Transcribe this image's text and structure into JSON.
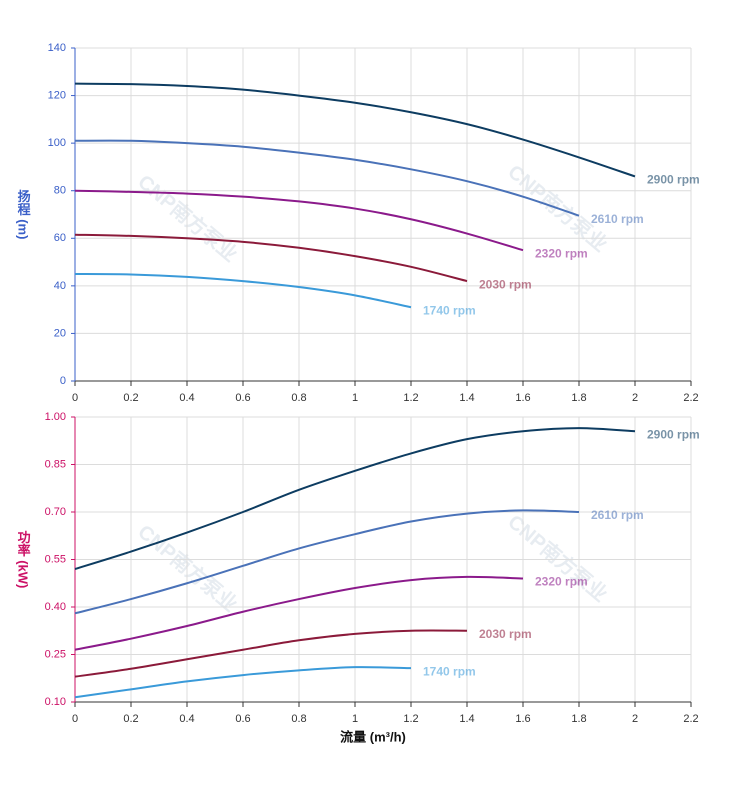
{
  "watermark": "CNP南方泵业",
  "chart_data": [
    {
      "type": "line",
      "y_label": "扬程 (m)",
      "axis_color": "#3a5fc8",
      "grid": true,
      "x": [
        0,
        0.2,
        0.4,
        0.6,
        0.8,
        1,
        1.2,
        1.4,
        1.6,
        1.8,
        2
      ],
      "xlim": [
        0,
        2.2
      ],
      "xticks": [
        0,
        0.2,
        0.4,
        0.6,
        0.8,
        1,
        1.2,
        1.4,
        1.6,
        1.8,
        2,
        2.2
      ],
      "ylim": [
        0,
        140
      ],
      "yticks": [
        0,
        20,
        40,
        60,
        80,
        100,
        120,
        140
      ],
      "series": [
        {
          "name": "2900 rpm",
          "color": "#0d3c61",
          "values": [
            125,
            124.8,
            124,
            122.5,
            120,
            117,
            113,
            108,
            101.5,
            94,
            86
          ]
        },
        {
          "name": "2610 rpm",
          "color": "#4a72b8",
          "values": [
            101,
            101,
            100,
            98.5,
            96,
            93,
            89,
            84,
            77.5,
            69.5,
            null
          ]
        },
        {
          "name": "2320 rpm",
          "color": "#8b1a8b",
          "values": [
            80,
            79.5,
            78.8,
            77.5,
            75.5,
            72.5,
            68,
            62,
            55,
            null,
            null
          ]
        },
        {
          "name": "2030 rpm",
          "color": "#8b1a3a",
          "values": [
            61.5,
            61,
            60,
            58.5,
            56,
            52.5,
            48,
            42,
            null,
            null,
            null
          ]
        },
        {
          "name": "1740 rpm",
          "color": "#3a9ad9",
          "values": [
            45,
            44.8,
            43.8,
            42,
            39.5,
            36,
            31,
            null,
            null,
            null,
            null
          ]
        }
      ]
    },
    {
      "type": "line",
      "x_label": "流量 (m³/h)",
      "y_label": "功率 (kW)",
      "axis_color": "#cc1166",
      "grid": true,
      "x": [
        0,
        0.2,
        0.4,
        0.6,
        0.8,
        1,
        1.2,
        1.4,
        1.6,
        1.8,
        2
      ],
      "xlim": [
        0,
        2.2
      ],
      "xticks": [
        0,
        0.2,
        0.4,
        0.6,
        0.8,
        1,
        1.2,
        1.4,
        1.6,
        1.8,
        2,
        2.2
      ],
      "ylim": [
        0.1,
        1
      ],
      "yticks": [
        {
          "value": 0.1,
          "label": "0.10"
        },
        0.25,
        {
          "value": 0.4,
          "label": "0.40"
        },
        0.55,
        {
          "value": 0.7,
          "label": "0.70"
        },
        0.85,
        {
          "value": 1,
          "label": "1.00"
        }
      ],
      "series": [
        {
          "name": "2900 rpm",
          "color": "#0d3c61",
          "values": [
            0.52,
            0.575,
            0.635,
            0.7,
            0.77,
            0.83,
            0.885,
            0.93,
            0.955,
            0.965,
            0.955
          ]
        },
        {
          "name": "2610 rpm",
          "color": "#4a72b8",
          "values": [
            0.38,
            0.425,
            0.475,
            0.53,
            0.585,
            0.63,
            0.67,
            0.695,
            0.705,
            0.7,
            null
          ]
        },
        {
          "name": "2320 rpm",
          "color": "#8b1a8b",
          "values": [
            0.265,
            0.3,
            0.34,
            0.385,
            0.425,
            0.46,
            0.485,
            0.495,
            0.49,
            null,
            null
          ]
        },
        {
          "name": "2030 rpm",
          "color": "#8b1a3a",
          "values": [
            0.18,
            0.205,
            0.235,
            0.265,
            0.295,
            0.315,
            0.325,
            0.325,
            null,
            null,
            null
          ]
        },
        {
          "name": "1740 rpm",
          "color": "#3a9ad9",
          "values": [
            0.115,
            0.14,
            0.165,
            0.185,
            0.2,
            0.21,
            0.207,
            null,
            null,
            null,
            null
          ]
        }
      ]
    }
  ]
}
